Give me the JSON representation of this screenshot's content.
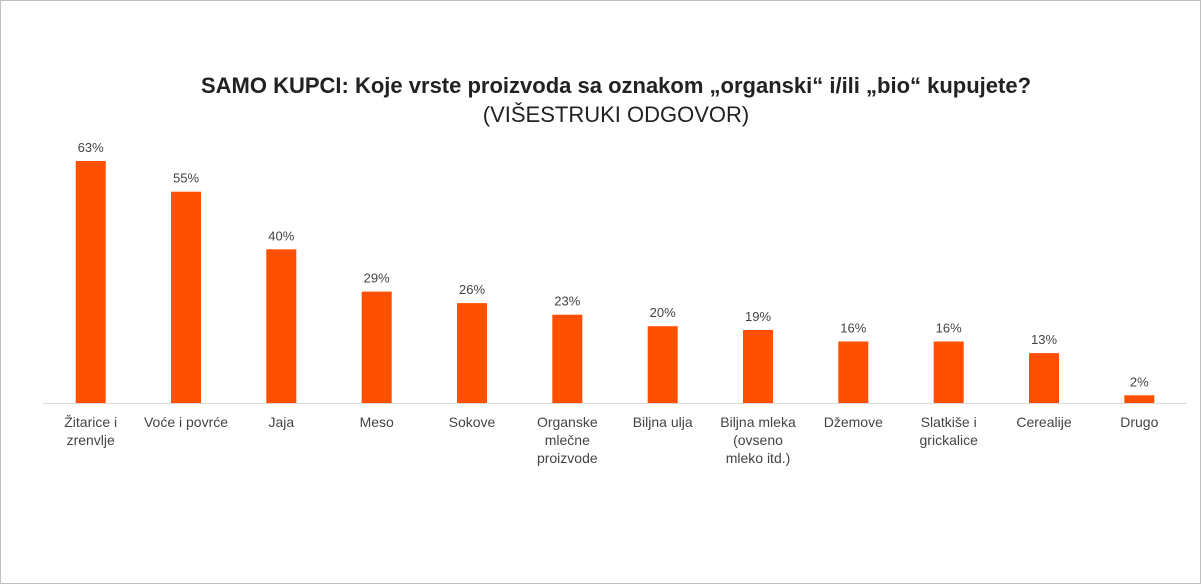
{
  "chart_data": {
    "type": "bar",
    "title": "SAMO KUPCI: Koje vrste proizvoda sa oznakom „organski“ i/ili „bio“ kupujete?",
    "subtitle": "(VIŠESTRUKI ODGOVOR)",
    "categories": [
      [
        "Žitarice i",
        "zrenvlje"
      ],
      [
        "Voće i povrće"
      ],
      [
        "Jaja"
      ],
      [
        "Meso"
      ],
      [
        "Sokove"
      ],
      [
        "Organske",
        "mlečne",
        "proizvode"
      ],
      [
        "Biljna ulja"
      ],
      [
        "Biljna mleka",
        "(ovseno",
        "mleko itd.)"
      ],
      [
        "Džemove"
      ],
      [
        "Slatkiše i",
        "grickalice"
      ],
      [
        "Cerealije"
      ],
      [
        "Drugo"
      ]
    ],
    "values": [
      63,
      55,
      40,
      29,
      26,
      23,
      20,
      19,
      16,
      16,
      13,
      2
    ],
    "data_labels": [
      "63%",
      "55%",
      "40%",
      "29%",
      "26%",
      "23%",
      "20%",
      "19%",
      "16%",
      "16%",
      "13%",
      "2%"
    ],
    "bar_color": "#ff5000",
    "axis_color": "#d9d9d9",
    "ylim": [
      0,
      63
    ],
    "grid": false,
    "legend": "none"
  }
}
